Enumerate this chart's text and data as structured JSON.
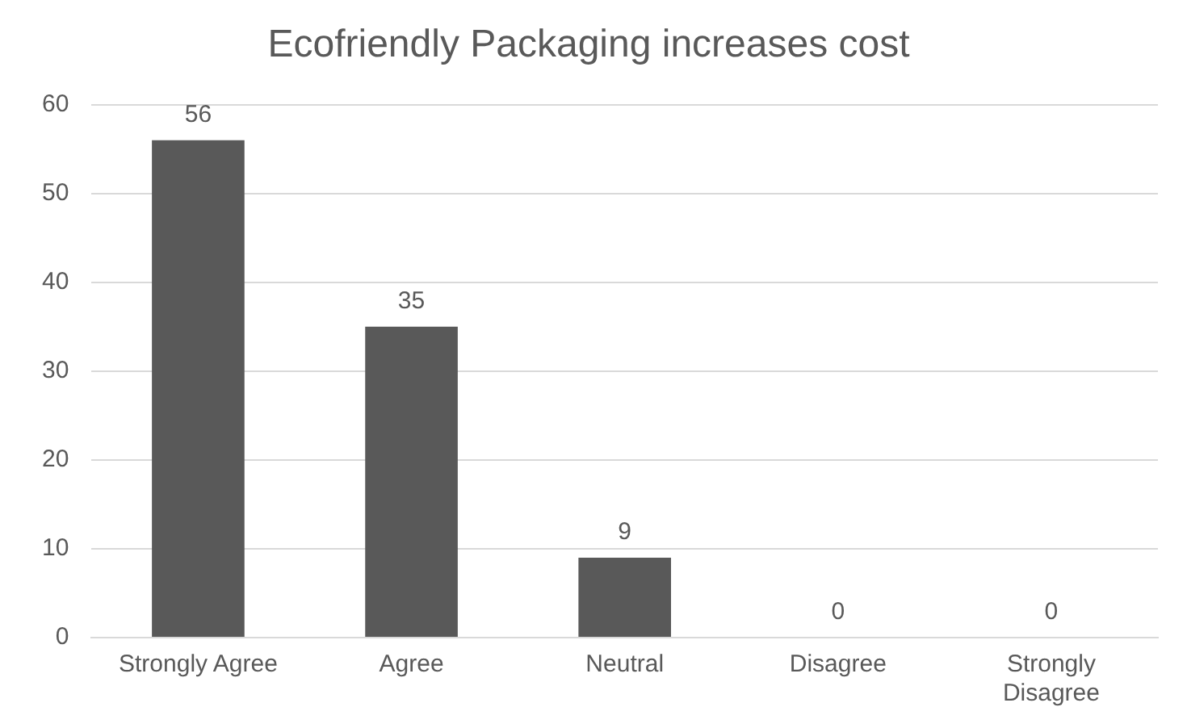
{
  "chart_data": {
    "type": "bar",
    "title": "Ecofriendly Packaging increases cost",
    "categories": [
      "Strongly Agree",
      "Agree",
      "Neutral",
      "Disagree",
      "Strongly Disagree"
    ],
    "values": [
      56,
      35,
      9,
      0,
      0
    ],
    "color": "#595959",
    "ylim": [
      0,
      60
    ],
    "yticks": [
      0,
      10,
      20,
      30,
      40,
      50,
      60
    ],
    "grid": "y",
    "legend": false,
    "data_labels": true
  }
}
